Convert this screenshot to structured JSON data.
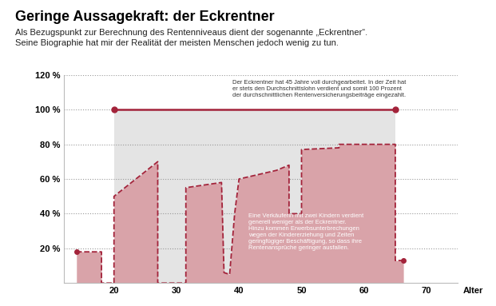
{
  "chart_data": {
    "type": "area",
    "title": "Geringe Aussagekraft: der Eckrentner",
    "subtitle": "Als Bezugspunkt zur Berechnung des Rentenniveaus dient der sogenannte „Eckrentner“.\nSeine Biographie hat mir der Realität der meisten Menschen jedoch wenig zu tun.",
    "x_label": "Alter",
    "xlim": [
      12,
      75
    ],
    "xticks": [
      20,
      30,
      40,
      50,
      60,
      70
    ],
    "ylim": [
      0,
      120
    ],
    "yticks": [
      {
        "value": 20,
        "label": "20 %"
      },
      {
        "value": 40,
        "label": "40 %"
      },
      {
        "value": 60,
        "label": "60 %"
      },
      {
        "value": 80,
        "label": "80 %"
      },
      {
        "value": 100,
        "label": "100 %"
      },
      {
        "value": 120,
        "label": "120 %"
      }
    ],
    "grid": true,
    "annotations": [
      "Der Eckrentner hat 45 Jahre voll durchgearbeitet. In der Zeit hat\ner stets den Durchschnittslohn verdient und somit 100 Prozent\nder durchschnittlichen Rentenversicherungsbeiträge eingezahlt.",
      "Eine Verkäuferin mit zwei Kindern verdient\ngenerell weniger als der Eckrentner.\nHinzu kommen Erwerbsunterbrechungen\nwegen der Kindererziehung und Zeiten\ngeringfügiger Beschäftigung, so dass ihre\nRentenansprüche geringer ausfallen."
    ],
    "series": [
      {
        "type": "area",
        "color": "#d9a3a9",
        "line_style": "dashed",
        "marker": "circle",
        "x": [
          14,
          18,
          18,
          20,
          20,
          27,
          27,
          31.5,
          31.5,
          37.2,
          37.6,
          38.5,
          39.3,
          40,
          46,
          48,
          48,
          50,
          50,
          56,
          56,
          65,
          65,
          66.3
        ],
        "values": [
          18,
          18,
          0,
          0,
          50,
          70,
          0,
          0,
          55,
          58,
          6,
          5,
          40,
          60,
          65,
          68,
          40,
          40,
          77,
          78,
          80,
          80,
          13,
          13
        ]
      },
      {
        "type": "line",
        "color": "#a3233a",
        "line_style": "solid",
        "marker": "circle",
        "x": [
          20,
          65
        ],
        "values": [
          100,
          100
        ]
      }
    ]
  }
}
